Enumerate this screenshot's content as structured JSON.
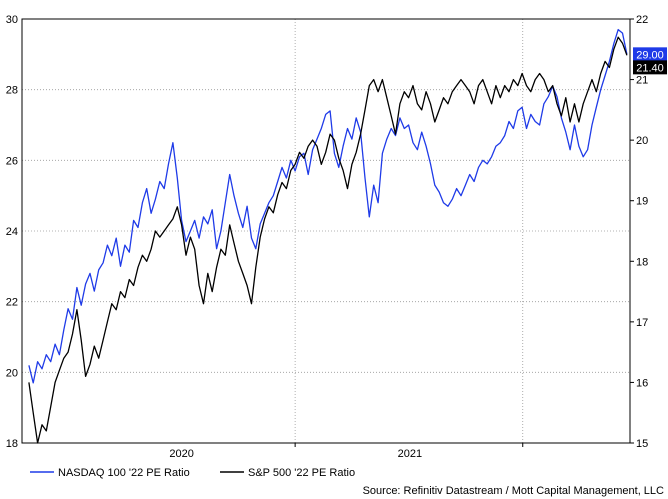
{
  "chart_data": {
    "type": "line",
    "title": "",
    "x_tick_labels": [
      "2020",
      "2021"
    ],
    "y_left": {
      "min": 18,
      "max": 30,
      "ticks": [
        "18",
        "20",
        "22",
        "24",
        "26",
        "28",
        "30"
      ]
    },
    "y_right": {
      "min": 15,
      "max": 22,
      "ticks": [
        "15",
        "16",
        "17",
        "18",
        "19",
        "20",
        "21",
        "22"
      ]
    },
    "grid": true,
    "legend_position": "bottom-left",
    "series": [
      {
        "name": "NASDAQ 100 '22 PE Ratio",
        "axis": "left",
        "color": "#1f3be8",
        "last_value_label": "29.00",
        "points": [
          [
            "2019-05-01",
            20.2
          ],
          [
            "2019-05-08",
            19.7
          ],
          [
            "2019-05-15",
            20.3
          ],
          [
            "2019-05-22",
            20.1
          ],
          [
            "2019-05-29",
            20.5
          ],
          [
            "2019-06-05",
            20.3
          ],
          [
            "2019-06-12",
            20.8
          ],
          [
            "2019-06-19",
            20.5
          ],
          [
            "2019-06-26",
            21.2
          ],
          [
            "2019-07-03",
            21.8
          ],
          [
            "2019-07-10",
            21.5
          ],
          [
            "2019-07-17",
            22.4
          ],
          [
            "2019-07-24",
            21.9
          ],
          [
            "2019-07-31",
            22.5
          ],
          [
            "2019-08-07",
            22.8
          ],
          [
            "2019-08-14",
            22.3
          ],
          [
            "2019-08-21",
            22.9
          ],
          [
            "2019-08-28",
            23.1
          ],
          [
            "2019-09-04",
            23.6
          ],
          [
            "2019-09-11",
            23.3
          ],
          [
            "2019-09-18",
            23.8
          ],
          [
            "2019-09-25",
            23.0
          ],
          [
            "2019-10-02",
            23.6
          ],
          [
            "2019-10-09",
            23.4
          ],
          [
            "2019-10-16",
            24.3
          ],
          [
            "2019-10-23",
            24.1
          ],
          [
            "2019-10-30",
            24.8
          ],
          [
            "2019-11-06",
            25.2
          ],
          [
            "2019-11-13",
            24.5
          ],
          [
            "2019-11-20",
            24.9
          ],
          [
            "2019-11-27",
            25.4
          ],
          [
            "2019-12-04",
            25.2
          ],
          [
            "2019-12-11",
            25.9
          ],
          [
            "2019-12-18",
            26.5
          ],
          [
            "2019-12-25",
            25.5
          ],
          [
            "2020-01-01",
            24.3
          ],
          [
            "2020-01-08",
            23.7
          ],
          [
            "2020-01-15",
            24.0
          ],
          [
            "2020-01-22",
            24.3
          ],
          [
            "2020-01-29",
            23.8
          ],
          [
            "2020-02-05",
            24.4
          ],
          [
            "2020-02-12",
            24.2
          ],
          [
            "2020-02-19",
            24.6
          ],
          [
            "2020-02-26",
            23.5
          ],
          [
            "2020-03-04",
            24.0
          ],
          [
            "2020-03-11",
            24.8
          ],
          [
            "2020-03-18",
            25.6
          ],
          [
            "2020-03-25",
            25.0
          ],
          [
            "2020-04-01",
            24.5
          ],
          [
            "2020-04-08",
            24.1
          ],
          [
            "2020-04-15",
            24.7
          ],
          [
            "2020-04-22",
            23.8
          ],
          [
            "2020-04-29",
            23.5
          ],
          [
            "2020-05-06",
            24.2
          ],
          [
            "2020-05-13",
            24.5
          ],
          [
            "2020-05-20",
            24.8
          ],
          [
            "2020-05-27",
            25.0
          ],
          [
            "2020-06-03",
            25.4
          ],
          [
            "2020-06-10",
            25.8
          ],
          [
            "2020-06-17",
            25.5
          ],
          [
            "2020-06-24",
            26.0
          ],
          [
            "2020-07-01",
            25.7
          ],
          [
            "2020-07-08",
            26.1
          ],
          [
            "2020-07-15",
            26.2
          ],
          [
            "2020-07-22",
            25.6
          ],
          [
            "2020-07-29",
            26.3
          ],
          [
            "2020-08-05",
            26.6
          ],
          [
            "2020-08-12",
            26.9
          ],
          [
            "2020-08-19",
            27.3
          ],
          [
            "2020-08-26",
            27.4
          ],
          [
            "2020-09-02",
            26.2
          ],
          [
            "2020-09-09",
            25.8
          ],
          [
            "2020-09-16",
            26.4
          ],
          [
            "2020-09-23",
            26.9
          ],
          [
            "2020-09-30",
            26.6
          ],
          [
            "2020-10-07",
            27.2
          ],
          [
            "2020-10-14",
            26.8
          ],
          [
            "2020-10-21",
            25.5
          ],
          [
            "2020-10-28",
            24.4
          ],
          [
            "2020-11-04",
            25.3
          ],
          [
            "2020-11-11",
            24.8
          ],
          [
            "2020-11-18",
            26.2
          ],
          [
            "2020-11-25",
            26.6
          ],
          [
            "2020-12-02",
            26.9
          ],
          [
            "2020-12-09",
            26.7
          ],
          [
            "2020-12-16",
            27.2
          ],
          [
            "2020-12-23",
            26.9
          ],
          [
            "2020-12-30",
            27.0
          ],
          [
            "2021-01-06",
            26.5
          ],
          [
            "2021-01-13",
            26.3
          ],
          [
            "2021-01-20",
            26.8
          ],
          [
            "2021-01-27",
            26.4
          ],
          [
            "2021-02-03",
            25.9
          ],
          [
            "2021-02-10",
            25.3
          ],
          [
            "2021-02-17",
            25.1
          ],
          [
            "2021-02-24",
            24.8
          ],
          [
            "2021-03-03",
            24.7
          ],
          [
            "2021-03-10",
            24.9
          ],
          [
            "2021-03-17",
            25.2
          ],
          [
            "2021-03-24",
            25.0
          ],
          [
            "2021-03-31",
            25.3
          ],
          [
            "2021-04-07",
            25.6
          ],
          [
            "2021-04-14",
            25.4
          ],
          [
            "2021-04-21",
            25.8
          ],
          [
            "2021-04-28",
            26.0
          ],
          [
            "2021-05-05",
            25.9
          ],
          [
            "2021-05-12",
            26.1
          ],
          [
            "2021-05-19",
            26.4
          ],
          [
            "2021-05-26",
            26.5
          ],
          [
            "2021-06-02",
            26.7
          ],
          [
            "2021-06-09",
            27.1
          ],
          [
            "2021-06-16",
            26.9
          ],
          [
            "2021-06-23",
            27.4
          ],
          [
            "2021-06-30",
            27.5
          ],
          [
            "2021-07-07",
            26.9
          ],
          [
            "2021-07-14",
            27.3
          ],
          [
            "2021-07-21",
            27.1
          ],
          [
            "2021-07-28",
            27.0
          ],
          [
            "2021-08-04",
            27.6
          ],
          [
            "2021-08-11",
            27.8
          ],
          [
            "2021-08-18",
            28.1
          ],
          [
            "2021-08-25",
            27.8
          ],
          [
            "2021-09-01",
            27.2
          ],
          [
            "2021-09-08",
            26.8
          ],
          [
            "2021-09-15",
            26.3
          ],
          [
            "2021-09-22",
            27.0
          ],
          [
            "2021-09-29",
            26.4
          ],
          [
            "2021-10-06",
            26.1
          ],
          [
            "2021-10-13",
            26.3
          ],
          [
            "2021-10-20",
            27.0
          ],
          [
            "2021-10-27",
            27.5
          ],
          [
            "2021-11-03",
            28.0
          ],
          [
            "2021-11-10",
            28.4
          ],
          [
            "2021-11-17",
            28.8
          ],
          [
            "2021-11-24",
            29.3
          ],
          [
            "2021-12-01",
            29.7
          ],
          [
            "2021-12-08",
            29.6
          ],
          [
            "2021-12-15",
            29.0
          ]
        ]
      },
      {
        "name": "S&P 500 '22 PE Ratio",
        "axis": "right",
        "color": "#000000",
        "last_value_label": "21.40",
        "points": [
          [
            "2019-05-01",
            16.0
          ],
          [
            "2019-05-08",
            15.5
          ],
          [
            "2019-05-15",
            15.0
          ],
          [
            "2019-05-22",
            15.3
          ],
          [
            "2019-05-29",
            15.2
          ],
          [
            "2019-06-05",
            15.6
          ],
          [
            "2019-06-12",
            16.0
          ],
          [
            "2019-06-19",
            16.2
          ],
          [
            "2019-06-26",
            16.4
          ],
          [
            "2019-07-03",
            16.5
          ],
          [
            "2019-07-10",
            16.8
          ],
          [
            "2019-07-17",
            17.2
          ],
          [
            "2019-07-24",
            16.7
          ],
          [
            "2019-07-31",
            16.1
          ],
          [
            "2019-08-07",
            16.3
          ],
          [
            "2019-08-14",
            16.6
          ],
          [
            "2019-08-21",
            16.4
          ],
          [
            "2019-08-28",
            16.7
          ],
          [
            "2019-09-04",
            17.0
          ],
          [
            "2019-09-11",
            17.3
          ],
          [
            "2019-09-18",
            17.2
          ],
          [
            "2019-09-25",
            17.5
          ],
          [
            "2019-10-02",
            17.4
          ],
          [
            "2019-10-09",
            17.7
          ],
          [
            "2019-10-16",
            17.6
          ],
          [
            "2019-10-23",
            17.9
          ],
          [
            "2019-10-30",
            18.1
          ],
          [
            "2019-11-06",
            18.0
          ],
          [
            "2019-11-13",
            18.2
          ],
          [
            "2019-11-20",
            18.5
          ],
          [
            "2019-11-27",
            18.4
          ],
          [
            "2019-12-04",
            18.5
          ],
          [
            "2019-12-11",
            18.6
          ],
          [
            "2019-12-18",
            18.7
          ],
          [
            "2019-12-25",
            18.9
          ],
          [
            "2020-01-01",
            18.6
          ],
          [
            "2020-01-08",
            18.1
          ],
          [
            "2020-01-15",
            18.4
          ],
          [
            "2020-01-22",
            18.2
          ],
          [
            "2020-01-29",
            17.6
          ],
          [
            "2020-02-05",
            17.3
          ],
          [
            "2020-02-12",
            17.8
          ],
          [
            "2020-02-19",
            17.5
          ],
          [
            "2020-02-26",
            17.9
          ],
          [
            "2020-03-04",
            18.2
          ],
          [
            "2020-03-11",
            18.1
          ],
          [
            "2020-03-18",
            18.6
          ],
          [
            "2020-03-25",
            18.3
          ],
          [
            "2020-04-01",
            18.0
          ],
          [
            "2020-04-08",
            17.8
          ],
          [
            "2020-04-15",
            17.6
          ],
          [
            "2020-04-22",
            17.3
          ],
          [
            "2020-04-29",
            17.9
          ],
          [
            "2020-05-06",
            18.4
          ],
          [
            "2020-05-13",
            18.7
          ],
          [
            "2020-05-20",
            18.9
          ],
          [
            "2020-05-27",
            18.8
          ],
          [
            "2020-06-03",
            19.1
          ],
          [
            "2020-06-10",
            19.3
          ],
          [
            "2020-06-17",
            19.2
          ],
          [
            "2020-06-24",
            19.5
          ],
          [
            "2020-07-01",
            19.6
          ],
          [
            "2020-07-08",
            19.8
          ],
          [
            "2020-07-15",
            19.7
          ],
          [
            "2020-07-22",
            19.9
          ],
          [
            "2020-07-29",
            20.0
          ],
          [
            "2020-08-05",
            19.9
          ],
          [
            "2020-08-12",
            19.6
          ],
          [
            "2020-08-19",
            19.8
          ],
          [
            "2020-08-26",
            20.1
          ],
          [
            "2020-09-02",
            20.0
          ],
          [
            "2020-09-09",
            19.7
          ],
          [
            "2020-09-16",
            19.5
          ],
          [
            "2020-09-23",
            19.2
          ],
          [
            "2020-09-30",
            19.6
          ],
          [
            "2020-10-07",
            19.8
          ],
          [
            "2020-10-14",
            20.1
          ],
          [
            "2020-10-21",
            20.5
          ],
          [
            "2020-10-28",
            20.9
          ],
          [
            "2020-11-04",
            21.0
          ],
          [
            "2020-11-11",
            20.8
          ],
          [
            "2020-11-18",
            21.0
          ],
          [
            "2020-11-25",
            20.7
          ],
          [
            "2020-12-02",
            20.4
          ],
          [
            "2020-12-09",
            20.1
          ],
          [
            "2020-12-16",
            20.6
          ],
          [
            "2020-12-23",
            20.8
          ],
          [
            "2020-12-30",
            20.7
          ],
          [
            "2021-01-06",
            20.9
          ],
          [
            "2021-01-13",
            20.6
          ],
          [
            "2021-01-20",
            20.5
          ],
          [
            "2021-01-27",
            20.8
          ],
          [
            "2021-02-03",
            20.6
          ],
          [
            "2021-02-10",
            20.3
          ],
          [
            "2021-02-17",
            20.5
          ],
          [
            "2021-02-24",
            20.7
          ],
          [
            "2021-03-03",
            20.6
          ],
          [
            "2021-03-10",
            20.8
          ],
          [
            "2021-03-17",
            20.9
          ],
          [
            "2021-03-24",
            21.0
          ],
          [
            "2021-03-31",
            20.9
          ],
          [
            "2021-04-07",
            20.8
          ],
          [
            "2021-04-14",
            20.6
          ],
          [
            "2021-04-21",
            20.9
          ],
          [
            "2021-04-28",
            21.0
          ],
          [
            "2021-05-05",
            20.8
          ],
          [
            "2021-05-12",
            20.6
          ],
          [
            "2021-05-19",
            20.9
          ],
          [
            "2021-05-26",
            20.7
          ],
          [
            "2021-06-02",
            20.9
          ],
          [
            "2021-06-09",
            20.8
          ],
          [
            "2021-06-16",
            21.0
          ],
          [
            "2021-06-23",
            20.9
          ],
          [
            "2021-06-30",
            21.1
          ],
          [
            "2021-07-07",
            20.9
          ],
          [
            "2021-07-14",
            20.8
          ],
          [
            "2021-07-21",
            21.0
          ],
          [
            "2021-07-28",
            21.1
          ],
          [
            "2021-08-04",
            21.0
          ],
          [
            "2021-08-11",
            20.8
          ],
          [
            "2021-08-18",
            20.9
          ],
          [
            "2021-08-25",
            20.6
          ],
          [
            "2021-09-01",
            20.4
          ],
          [
            "2021-09-08",
            20.7
          ],
          [
            "2021-09-15",
            20.3
          ],
          [
            "2021-09-22",
            20.6
          ],
          [
            "2021-09-29",
            20.3
          ],
          [
            "2021-10-06",
            20.6
          ],
          [
            "2021-10-13",
            20.8
          ],
          [
            "2021-10-20",
            21.0
          ],
          [
            "2021-10-27",
            20.8
          ],
          [
            "2021-11-03",
            21.1
          ],
          [
            "2021-11-10",
            21.3
          ],
          [
            "2021-11-17",
            21.2
          ],
          [
            "2021-11-24",
            21.5
          ],
          [
            "2021-12-01",
            21.7
          ],
          [
            "2021-12-08",
            21.6
          ],
          [
            "2021-12-15",
            21.4
          ]
        ]
      }
    ],
    "source": "Source: Refinitiv Datastream / Mott Capital Management, LLC"
  }
}
